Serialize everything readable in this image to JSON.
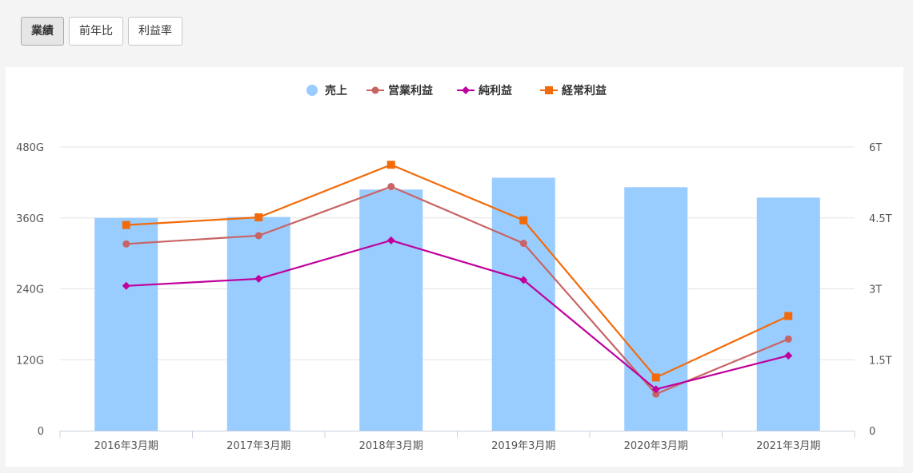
{
  "tabs": [
    {
      "label": "業績",
      "active": true
    },
    {
      "label": "前年比",
      "active": false
    },
    {
      "label": "利益率",
      "active": false
    }
  ],
  "chart_data": {
    "type": "bar",
    "categories": [
      "2016年3月期",
      "2017年3月期",
      "2018年3月期",
      "2019年3月期",
      "2020年3月期",
      "2021年3月期"
    ],
    "left_axis": {
      "ticks": [
        0,
        120,
        240,
        360,
        480
      ],
      "tick_labels": [
        "0",
        "120G",
        "240G",
        "360G",
        "480G"
      ],
      "range": [
        0,
        480
      ],
      "unit": "G"
    },
    "right_axis": {
      "ticks": [
        0,
        1.5,
        3,
        4.5,
        6
      ],
      "tick_labels": [
        "0",
        "1.5T",
        "3T",
        "4.5T",
        "6T"
      ],
      "range": [
        0,
        6
      ],
      "unit": "T"
    },
    "grid": true,
    "legend_position": "top",
    "series": [
      {
        "name": "売上",
        "type": "bar",
        "axis": "right",
        "color": "#99ccff",
        "marker": "circle",
        "values": [
          4.5,
          4.52,
          5.1,
          5.35,
          5.15,
          4.93
        ]
      },
      {
        "name": "営業利益",
        "type": "line",
        "axis": "left",
        "color": "#c86464",
        "marker": "circle",
        "values": [
          316,
          330,
          413,
          317,
          62,
          155
        ]
      },
      {
        "name": "純利益",
        "type": "line",
        "axis": "left",
        "color": "#c0009c",
        "marker": "diamond",
        "values": [
          245,
          257,
          322,
          255,
          70,
          127
        ]
      },
      {
        "name": "経常利益",
        "type": "line",
        "axis": "left",
        "color": "#f26b0a",
        "marker": "square",
        "values": [
          348,
          361,
          450,
          356,
          90,
          194
        ]
      }
    ]
  }
}
